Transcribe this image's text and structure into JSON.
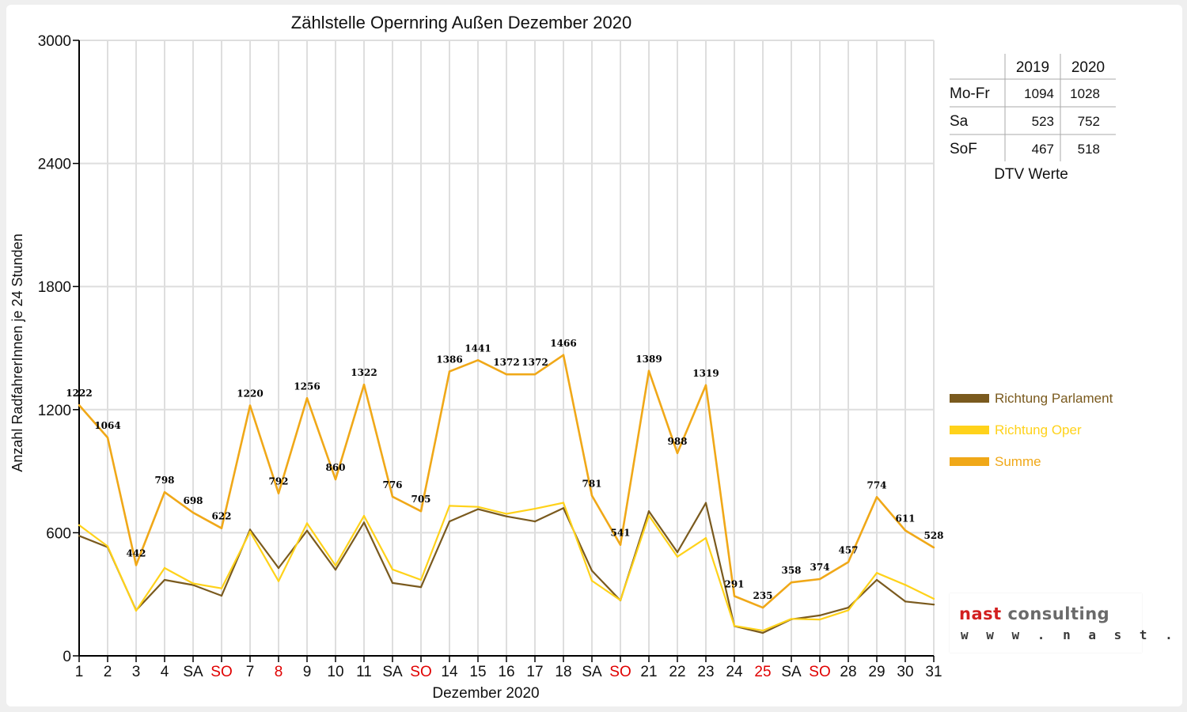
{
  "chart_data": {
    "type": "line",
    "title": "Zählstelle Opernring Außen Dezember 2020",
    "xlabel": "Dezember 2020",
    "ylabel": "Anzahl RadfahrerInnen je 24 Stunden",
    "ylim": [
      0,
      3000
    ],
    "yticks": [
      0,
      600,
      1200,
      1800,
      2400,
      3000
    ],
    "grid": true,
    "categories": [
      "1",
      "2",
      "3",
      "4",
      "SA",
      "SO",
      "7",
      "8",
      "9",
      "10",
      "11",
      "SA",
      "SO",
      "14",
      "15",
      "16",
      "17",
      "18",
      "SA",
      "SO",
      "21",
      "22",
      "23",
      "24",
      "25",
      "SA",
      "SO",
      "28",
      "29",
      "30",
      "31"
    ],
    "highlight_categories": [
      5,
      7,
      12,
      19,
      24,
      26
    ],
    "series": [
      {
        "name": "Richtung Parlament",
        "color": "#7a5a1e",
        "values": [
          585,
          530,
          222,
          370,
          345,
          293,
          615,
          428,
          610,
          420,
          650,
          355,
          335,
          655,
          715,
          680,
          655,
          720,
          415,
          270,
          705,
          505,
          745,
          145,
          112,
          178,
          197,
          235,
          370,
          265,
          250
        ]
      },
      {
        "name": "Richtung Oper",
        "color": "#ffd21a",
        "values": [
          637,
          534,
          220,
          428,
          353,
          329,
          605,
          364,
          646,
          440,
          682,
          421,
          370,
          731,
          726,
          692,
          717,
          746,
          366,
          271,
          684,
          483,
          574,
          146,
          123,
          180,
          177,
          222,
          404,
          346,
          278
        ]
      },
      {
        "name": "Summe",
        "color": "#f0a818",
        "values": [
          1222,
          1064,
          442,
          798,
          698,
          622,
          1220,
          792,
          1256,
          860,
          1322,
          776,
          705,
          1386,
          1441,
          1372,
          1372,
          1466,
          781,
          541,
          1389,
          988,
          1319,
          291,
          235,
          358,
          374,
          457,
          774,
          611,
          528
        ]
      }
    ],
    "data_labels": [
      "1222",
      "1064",
      "442",
      "798",
      "698",
      "622",
      "1220",
      "792",
      "1256",
      "860",
      "1322",
      "776",
      "705",
      "1386",
      "1441",
      "1372",
      "1372",
      "1466",
      "781",
      "541",
      "1389",
      "988",
      "1319",
      "291",
      "235",
      "358",
      "374",
      "457",
      "774",
      "611",
      "528"
    ],
    "legend_position": "right",
    "table": {
      "caption": "DTV Werte",
      "columns": [
        "",
        "2019",
        "2020"
      ],
      "rows": [
        [
          "Mo-Fr",
          "1094",
          "1028"
        ],
        [
          "Sa",
          "523",
          "752"
        ],
        [
          "SoF",
          "467",
          "518"
        ]
      ]
    }
  },
  "logo": {
    "part1": "nast",
    "part2": " consulting",
    "url": "w w w . n a s t . a t"
  }
}
